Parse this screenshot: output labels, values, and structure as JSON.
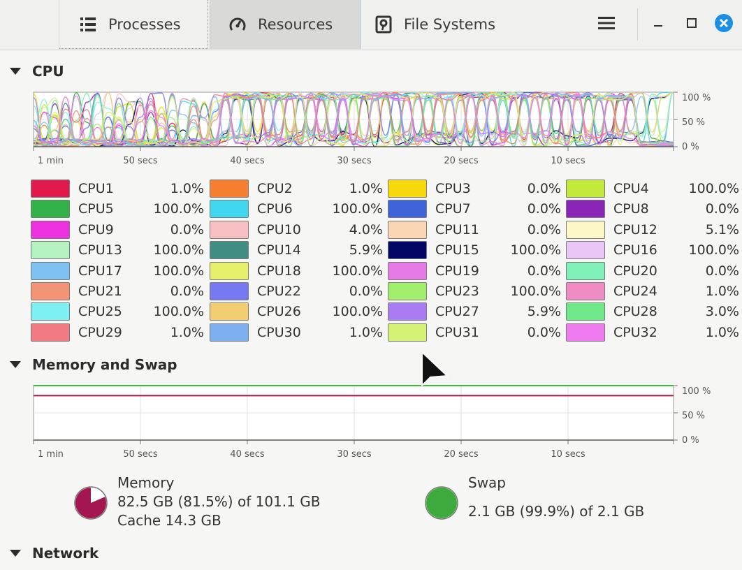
{
  "tabs": [
    {
      "label": "Processes",
      "icon": "list-icon"
    },
    {
      "label": "Resources",
      "icon": "gauge-icon"
    },
    {
      "label": "File Systems",
      "icon": "disk-icon"
    }
  ],
  "window": {
    "menu_icon": "hamburger-menu-icon",
    "minimize_icon": "minimize-icon",
    "maximize_icon": "maximize-icon",
    "close_icon": "close-icon",
    "close_color": "#1a8fe3"
  },
  "cpu": {
    "title": "CPU",
    "y_ticks": [
      "100 %",
      "50 %",
      "0 %"
    ],
    "x_ticks": [
      "1 min",
      "50 secs",
      "40 secs",
      "30 secs",
      "20 secs",
      "10 secs"
    ],
    "cores": [
      {
        "label": "CPU1",
        "value": "1.0%",
        "color": "#e01b4c"
      },
      {
        "label": "CPU2",
        "value": "1.0%",
        "color": "#f57f2e"
      },
      {
        "label": "CPU3",
        "value": "0.0%",
        "color": "#f6d80c"
      },
      {
        "label": "CPU4",
        "value": "100.0%",
        "color": "#c2ea3a"
      },
      {
        "label": "CPU5",
        "value": "100.0%",
        "color": "#33b24a"
      },
      {
        "label": "CPU6",
        "value": "100.0%",
        "color": "#41d7f0"
      },
      {
        "label": "CPU7",
        "value": "0.0%",
        "color": "#3f63d8"
      },
      {
        "label": "CPU8",
        "value": "0.0%",
        "color": "#8a25b8"
      },
      {
        "label": "CPU9",
        "value": "0.0%",
        "color": "#ee31e0"
      },
      {
        "label": "CPU10",
        "value": "4.0%",
        "color": "#f7c0c2"
      },
      {
        "label": "CPU11",
        "value": "0.0%",
        "color": "#fbd6b4"
      },
      {
        "label": "CPU12",
        "value": "5.1%",
        "color": "#fdf7c8"
      },
      {
        "label": "CPU13",
        "value": "100.0%",
        "color": "#b6f3c2"
      },
      {
        "label": "CPU14",
        "value": "5.9%",
        "color": "#3f8d83"
      },
      {
        "label": "CPU15",
        "value": "100.0%",
        "color": "#040666"
      },
      {
        "label": "CPU16",
        "value": "100.0%",
        "color": "#e9c6f6"
      },
      {
        "label": "CPU17",
        "value": "100.0%",
        "color": "#7fc2f1"
      },
      {
        "label": "CPU18",
        "value": "100.0%",
        "color": "#e6f06a"
      },
      {
        "label": "CPU19",
        "value": "0.0%",
        "color": "#e67ae6"
      },
      {
        "label": "CPU20",
        "value": "0.0%",
        "color": "#7ef0b8"
      },
      {
        "label": "CPU21",
        "value": "0.0%",
        "color": "#f39474"
      },
      {
        "label": "CPU22",
        "value": "0.0%",
        "color": "#7679ef"
      },
      {
        "label": "CPU23",
        "value": "100.0%",
        "color": "#a2ee6c"
      },
      {
        "label": "CPU24",
        "value": "1.0%",
        "color": "#f08ac2"
      },
      {
        "label": "CPU25",
        "value": "100.0%",
        "color": "#7ef0f3"
      },
      {
        "label": "CPU26",
        "value": "100.0%",
        "color": "#f2cd72"
      },
      {
        "label": "CPU27",
        "value": "5.9%",
        "color": "#a97cf2"
      },
      {
        "label": "CPU28",
        "value": "3.0%",
        "color": "#6fe88a"
      },
      {
        "label": "CPU29",
        "value": "1.0%",
        "color": "#f27a84"
      },
      {
        "label": "CPU30",
        "value": "1.0%",
        "color": "#7eb0f1"
      },
      {
        "label": "CPU31",
        "value": "0.0%",
        "color": "#d6f276"
      },
      {
        "label": "CPU32",
        "value": "1.0%",
        "color": "#f07af0"
      }
    ]
  },
  "memory": {
    "title": "Memory and Swap",
    "y_ticks": [
      "100 %",
      "50 %",
      "0 %"
    ],
    "x_ticks": [
      "1 min",
      "50 secs",
      "40 secs",
      "30 secs",
      "20 secs",
      "10 secs"
    ],
    "memory_label": "Memory",
    "memory_usage": "82.5 GB (81.5%) of 101.1 GB",
    "memory_cache": "Cache 14.3 GB",
    "memory_fraction": 0.815,
    "memory_color": "#a3164f",
    "swap_label": "Swap",
    "swap_usage": "2.1 GB (99.9%) of 2.1 GB",
    "swap_fraction": 0.999,
    "swap_color": "#3caa3c"
  },
  "network": {
    "title": "Network"
  }
}
